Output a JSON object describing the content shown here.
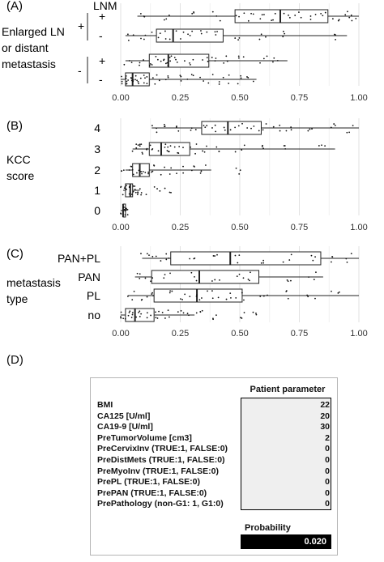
{
  "chart_data": [
    {
      "panel": "(A)",
      "type": "box",
      "ylabel_lines": [
        "Enlarged LN",
        "or distant",
        "metastasis"
      ],
      "legend_title": "LNM",
      "group_labels": [
        "+",
        "-"
      ],
      "subgroup_labels": [
        "+",
        "-"
      ],
      "xlim": [
        0,
        1
      ],
      "xticks": [
        "0.00",
        "0.25",
        "0.50",
        "0.75",
        "1.00"
      ],
      "series": [
        {
          "group": "+",
          "lnm": "+",
          "min": 0.07,
          "q1": 0.48,
          "median": 0.67,
          "q3": 0.87,
          "max": 1.0,
          "points": [
            0.1,
            0.2,
            0.3,
            0.4,
            0.5,
            0.55,
            0.6,
            0.65,
            0.7,
            0.75,
            0.8,
            0.85,
            0.9,
            0.95,
            0.98
          ]
        },
        {
          "group": "+",
          "lnm": "-",
          "min": 0.02,
          "q1": 0.15,
          "median": 0.22,
          "q3": 0.43,
          "max": 0.95,
          "points": [
            0.05,
            0.1,
            0.15,
            0.2,
            0.25,
            0.3,
            0.35,
            0.4,
            0.5,
            0.6,
            0.7,
            0.9
          ]
        },
        {
          "group": "-",
          "lnm": "+",
          "min": 0.02,
          "q1": 0.12,
          "median": 0.2,
          "q3": 0.37,
          "max": 0.7,
          "points": [
            0.03,
            0.08,
            0.12,
            0.15,
            0.18,
            0.2,
            0.22,
            0.25,
            0.3,
            0.35,
            0.4,
            0.45,
            0.5,
            0.6,
            0.65
          ]
        },
        {
          "group": "-",
          "lnm": "-",
          "min": 0.0,
          "q1": 0.02,
          "median": 0.05,
          "q3": 0.12,
          "max": 0.57,
          "points": [
            0.01,
            0.02,
            0.03,
            0.04,
            0.05,
            0.06,
            0.08,
            0.1,
            0.12,
            0.15,
            0.2,
            0.25,
            0.3,
            0.35,
            0.4,
            0.45,
            0.5,
            0.55
          ]
        }
      ]
    },
    {
      "panel": "(B)",
      "type": "box",
      "ylabel_lines": [
        "KCC",
        "score"
      ],
      "categories": [
        "4",
        "3",
        "2",
        "1",
        "0"
      ],
      "xlim": [
        0,
        1
      ],
      "xticks": [
        "0.00",
        "0.25",
        "0.50",
        "0.75",
        "1.00"
      ],
      "series": [
        {
          "name": "4",
          "min": 0.13,
          "q1": 0.34,
          "median": 0.45,
          "q3": 0.59,
          "max": 1.0,
          "points": [
            0.15,
            0.2,
            0.25,
            0.3,
            0.35,
            0.4,
            0.45,
            0.5,
            0.55,
            0.6,
            0.65,
            0.7,
            0.8,
            0.9,
            0.97
          ]
        },
        {
          "name": "3",
          "min": 0.05,
          "q1": 0.12,
          "median": 0.17,
          "q3": 0.29,
          "max": 0.9,
          "points": [
            0.06,
            0.08,
            0.1,
            0.12,
            0.15,
            0.18,
            0.2,
            0.22,
            0.25,
            0.3,
            0.35,
            0.4,
            0.5,
            0.6,
            0.7,
            0.85
          ]
        },
        {
          "name": "2",
          "min": 0.02,
          "q1": 0.05,
          "median": 0.08,
          "q3": 0.12,
          "max": 0.38,
          "points": [
            0.02,
            0.04,
            0.06,
            0.08,
            0.1,
            0.12,
            0.15,
            0.2,
            0.25,
            0.3,
            0.35,
            0.5
          ]
        },
        {
          "name": "1",
          "min": 0.01,
          "q1": 0.02,
          "median": 0.04,
          "q3": 0.05,
          "max": 0.08,
          "points": [
            0.01,
            0.02,
            0.03,
            0.04,
            0.05,
            0.06,
            0.08,
            0.1,
            0.15,
            0.2
          ]
        },
        {
          "name": "0",
          "min": 0.0,
          "q1": 0.01,
          "median": 0.01,
          "q3": 0.02,
          "max": 0.02,
          "points": [
            0.005,
            0.01,
            0.012,
            0.015,
            0.02
          ]
        }
      ]
    },
    {
      "panel": "(C)",
      "type": "box",
      "ylabel_lines": [
        "metastasis",
        "type"
      ],
      "categories": [
        "PAN+PL",
        "PAN",
        "PL",
        "no"
      ],
      "xlim": [
        0,
        1
      ],
      "xticks": [
        "0.00",
        "0.25",
        "0.50",
        "0.75",
        "1.00"
      ],
      "series": [
        {
          "name": "PAN+PL",
          "min": 0.09,
          "q1": 0.21,
          "median": 0.46,
          "q3": 0.84,
          "max": 1.0,
          "points": [
            0.1,
            0.15,
            0.2,
            0.3,
            0.4,
            0.5,
            0.6,
            0.7,
            0.8,
            0.9,
            0.95
          ]
        },
        {
          "name": "PAN",
          "min": 0.06,
          "q1": 0.13,
          "median": 0.33,
          "q3": 0.58,
          "max": 0.85,
          "points": [
            0.08,
            0.12,
            0.2,
            0.3,
            0.4,
            0.5,
            0.55,
            0.7,
            0.8
          ]
        },
        {
          "name": "PL",
          "min": 0.03,
          "q1": 0.14,
          "median": 0.32,
          "q3": 0.51,
          "max": 1.0,
          "points": [
            0.05,
            0.1,
            0.15,
            0.2,
            0.25,
            0.3,
            0.35,
            0.4,
            0.45,
            0.5,
            0.6,
            0.7,
            0.8,
            0.9
          ]
        },
        {
          "name": "no",
          "min": 0.0,
          "q1": 0.02,
          "median": 0.06,
          "q3": 0.14,
          "max": 0.31,
          "points": [
            0.01,
            0.02,
            0.03,
            0.05,
            0.07,
            0.1,
            0.13,
            0.16,
            0.2,
            0.25,
            0.3,
            0.35,
            0.4,
            0.5,
            0.55
          ]
        }
      ]
    }
  ],
  "panel_d": {
    "letter": "(D)",
    "header": "Patient parameter",
    "rows": [
      {
        "name": "BMI",
        "value": "22"
      },
      {
        "name": "CA125 [U/ml]",
        "value": "20"
      },
      {
        "name": "CA19-9 [U/ml]",
        "value": "30"
      },
      {
        "name": "PreTumorVolume [cm3]",
        "value": "2"
      },
      {
        "name": "PreCervixInv (TRUE:1, FALSE:0)",
        "value": "0"
      },
      {
        "name": "PreDistMets (TRUE:1, FALSE:0)",
        "value": "0"
      },
      {
        "name": "PreMyoInv (TRUE:1, FALSE:0)",
        "value": "0"
      },
      {
        "name": "PrePL (TRUE:1, FALSE:0)",
        "value": "0"
      },
      {
        "name": "PrePAN (TRUE:1, FALSE:0)",
        "value": "0"
      },
      {
        "name": "PrePathology (non-G1: 1, G1:0)",
        "value": "0"
      }
    ],
    "probability_label": "Probability",
    "probability_value": "0.020"
  }
}
